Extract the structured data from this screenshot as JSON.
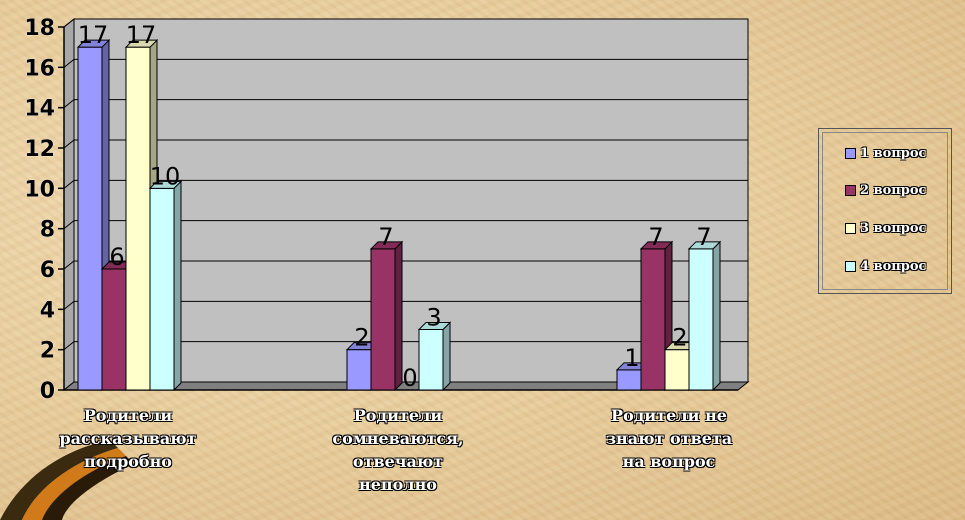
{
  "chart_data": {
    "type": "bar",
    "categories": [
      [
        "Родители",
        "рассказывают",
        "подробно"
      ],
      [
        "Родители",
        "сомневаются,",
        "отвечают",
        "неполно"
      ],
      [
        "Родители не",
        "знают ответа",
        "на вопрос"
      ]
    ],
    "series": [
      {
        "name": "1 вопрос",
        "values": [
          17,
          2,
          1
        ],
        "color": "#9999ff"
      },
      {
        "name": "2 вопрос",
        "values": [
          6,
          7,
          7
        ],
        "color": "#993366"
      },
      {
        "name": "3 вопрос",
        "values": [
          17,
          0,
          2
        ],
        "color": "#ffffcc"
      },
      {
        "name": "4 вопрос",
        "values": [
          10,
          3,
          7
        ],
        "color": "#ccffff"
      }
    ],
    "ylim": [
      0,
      18
    ],
    "yticks": [
      0,
      2,
      4,
      6,
      8,
      10,
      12,
      14,
      16,
      18
    ],
    "grid": true,
    "legend_position": "right",
    "title": "",
    "xlabel": "",
    "ylabel": ""
  }
}
